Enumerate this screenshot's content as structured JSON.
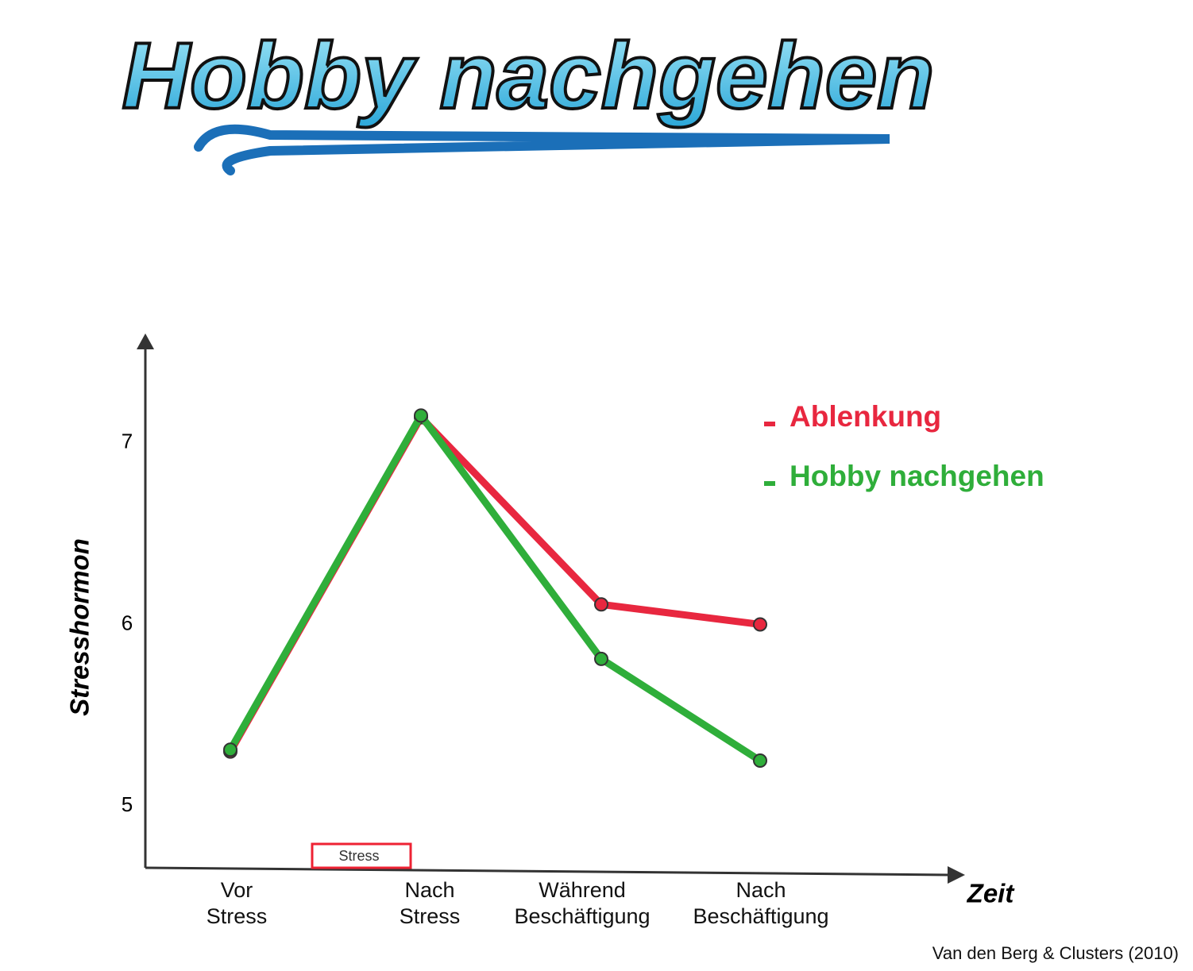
{
  "chart_data": {
    "type": "line",
    "title": "Hobby nachgehen",
    "categories": [
      "Vor Stress",
      "Nach Stress",
      "Während Beschäftigung",
      "Nach Beschäftigung"
    ],
    "series": [
      {
        "name": "Ablenkung",
        "color": "#e8273f",
        "values": [
          5.3,
          7.14,
          6.11,
          6.0
        ]
      },
      {
        "name": "Hobby nachgehen",
        "color": "#2fae3a",
        "values": [
          5.31,
          7.15,
          5.81,
          5.25
        ]
      }
    ],
    "ylim": [
      4.66,
      7.58
    ],
    "yticks": [
      5,
      6,
      7
    ],
    "y_label": "Stresshormon",
    "x_label": "Zeit",
    "annotation": "Stress",
    "source": "Van den Berg & Clusters (2010)",
    "legend": "upper right"
  }
}
